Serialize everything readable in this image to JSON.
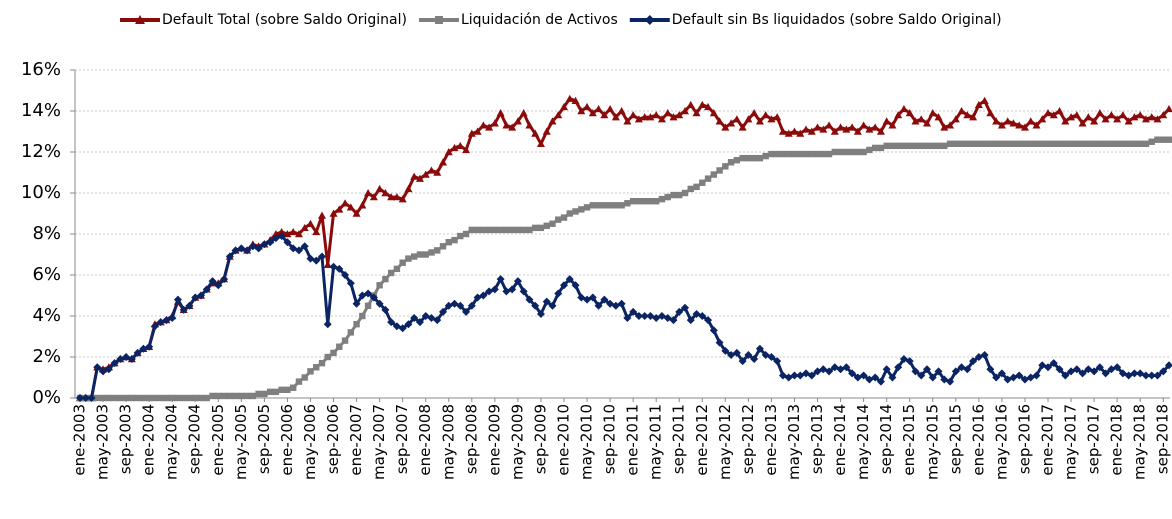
{
  "chart_data": {
    "type": "line",
    "categories": [
      "ene-2003",
      null,
      null,
      null,
      "may-2003",
      null,
      null,
      null,
      "sep-2003",
      null,
      null,
      null,
      "ene-2004",
      null,
      null,
      null,
      "may-2004",
      null,
      null,
      null,
      "sep-2004",
      null,
      null,
      null,
      "ene-2005",
      null,
      null,
      null,
      "may-2005",
      null,
      null,
      null,
      "sep-2005",
      null,
      null,
      null,
      "ene-2006",
      null,
      null,
      null,
      "may-2006",
      null,
      null,
      null,
      "sep-2006",
      null,
      null,
      null,
      "ene-2007",
      null,
      null,
      null,
      "may-2007",
      null,
      null,
      null,
      "sep-2007",
      null,
      null,
      null,
      "ene-2008",
      null,
      null,
      null,
      "may-2008",
      null,
      null,
      null,
      "sep-2008",
      null,
      null,
      null,
      "ene-2009",
      null,
      null,
      null,
      "may-2009",
      null,
      null,
      null,
      "sep-2009",
      null,
      null,
      null,
      "ene-2010",
      null,
      null,
      null,
      "may-2010",
      null,
      null,
      null,
      "sep-2010",
      null,
      null,
      null,
      "ene-2011",
      null,
      null,
      null,
      "may-2011",
      null,
      null,
      null,
      "sep-2011",
      null,
      null,
      null,
      "ene-2012",
      null,
      null,
      null,
      "may-2012",
      null,
      null,
      null,
      "sep-2012",
      null,
      null,
      null,
      "ene-2013",
      null,
      null,
      null,
      "may-2013",
      null,
      null,
      null,
      "sep-2013",
      null,
      null,
      null,
      "ene-2014",
      null,
      null,
      null,
      "may-2014",
      null,
      null,
      null,
      "sep-2014",
      null,
      null,
      null,
      "ene-2015",
      null,
      null,
      null,
      "may-2015",
      null,
      null,
      null,
      "sep-2015",
      null,
      null,
      null,
      "ene-2016",
      null,
      null,
      null,
      "may-2016",
      null,
      null,
      null,
      "sep-2016",
      null,
      null,
      null,
      "ene-2017",
      null,
      null,
      null,
      "may-2017",
      null,
      null,
      null,
      "sep-2017",
      null,
      null,
      null,
      "ene-2018",
      null,
      null,
      null,
      "may-2018",
      null,
      null,
      null,
      "sep-2018",
      null
    ],
    "series": [
      {
        "name": "Default Total (sobre Saldo Original)",
        "color": "#8b0a0a",
        "marker": "triangle",
        "values": [
          0,
          0,
          0,
          1.5,
          1.4,
          1.5,
          1.7,
          1.9,
          2.0,
          1.9,
          2.2,
          2.4,
          2.5,
          3.6,
          3.7,
          3.8,
          4.0,
          4.7,
          4.3,
          4.5,
          4.9,
          5.0,
          5.3,
          5.6,
          5.6,
          5.8,
          6.9,
          7.2,
          7.3,
          7.2,
          7.5,
          7.4,
          7.5,
          7.7,
          8.0,
          8.1,
          8.0,
          8.1,
          8.0,
          8.3,
          8.5,
          8.1,
          8.9,
          6.5,
          9.0,
          9.2,
          9.5,
          9.3,
          9.0,
          9.4,
          10.0,
          9.8,
          10.2,
          10.0,
          9.8,
          9.8,
          9.7,
          10.2,
          10.8,
          10.7,
          10.9,
          11.1,
          11.0,
          11.5,
          12.0,
          12.2,
          12.3,
          12.1,
          12.9,
          13.0,
          13.3,
          13.2,
          13.4,
          13.9,
          13.3,
          13.2,
          13.5,
          13.9,
          13.3,
          12.9,
          12.4,
          13.0,
          13.5,
          13.8,
          14.2,
          14.6,
          14.5,
          14.0,
          14.2,
          13.9,
          14.1,
          13.8,
          14.1,
          13.7,
          14.0,
          13.5,
          13.8,
          13.6,
          13.7,
          13.7,
          13.8,
          13.6,
          13.9,
          13.7,
          13.8,
          14.0,
          14.3,
          13.9,
          14.3,
          14.2,
          13.9,
          13.5,
          13.2,
          13.4,
          13.6,
          13.2,
          13.6,
          13.9,
          13.5,
          13.8,
          13.6,
          13.7,
          13.0,
          12.9,
          13.0,
          12.9,
          13.1,
          13.0,
          13.2,
          13.1,
          13.3,
          13.0,
          13.2,
          13.1,
          13.2,
          13.0,
          13.3,
          13.1,
          13.2,
          13.0,
          13.5,
          13.3,
          13.8,
          14.1,
          13.9,
          13.5,
          13.6,
          13.4,
          13.9,
          13.7,
          13.2,
          13.3,
          13.6,
          14.0,
          13.8,
          13.7,
          14.3,
          14.5,
          13.9,
          13.5,
          13.3,
          13.5,
          13.4,
          13.3,
          13.2,
          13.5,
          13.3,
          13.6,
          13.9,
          13.8,
          14.0,
          13.5,
          13.7,
          13.8,
          13.4,
          13.7,
          13.5,
          13.9,
          13.6,
          13.8,
          13.6,
          13.8,
          13.5,
          13.7,
          13.8,
          13.6,
          13.7,
          13.6,
          13.8,
          14.1
        ]
      },
      {
        "name": "Liquidación de Activos",
        "color": "#7f7f7f",
        "marker": "square",
        "values": [
          0,
          0,
          0,
          0,
          0,
          0,
          0,
          0,
          0,
          0,
          0,
          0,
          0,
          0,
          0,
          0,
          0,
          0,
          0,
          0,
          0,
          0,
          0,
          0.1,
          0.1,
          0.1,
          0.1,
          0.1,
          0.1,
          0.1,
          0.1,
          0.2,
          0.2,
          0.3,
          0.3,
          0.4,
          0.4,
          0.5,
          0.8,
          1.0,
          1.3,
          1.5,
          1.7,
          2.0,
          2.2,
          2.5,
          2.8,
          3.2,
          3.6,
          4.0,
          4.5,
          5.0,
          5.5,
          5.8,
          6.1,
          6.3,
          6.6,
          6.8,
          6.9,
          7.0,
          7.0,
          7.1,
          7.2,
          7.4,
          7.6,
          7.7,
          7.9,
          8.0,
          8.2,
          8.2,
          8.2,
          8.2,
          8.2,
          8.2,
          8.2,
          8.2,
          8.2,
          8.2,
          8.2,
          8.3,
          8.3,
          8.4,
          8.5,
          8.7,
          8.8,
          9.0,
          9.1,
          9.2,
          9.3,
          9.4,
          9.4,
          9.4,
          9.4,
          9.4,
          9.4,
          9.5,
          9.6,
          9.6,
          9.6,
          9.6,
          9.6,
          9.7,
          9.8,
          9.9,
          9.9,
          10.0,
          10.2,
          10.3,
          10.5,
          10.7,
          10.9,
          11.1,
          11.3,
          11.5,
          11.6,
          11.7,
          11.7,
          11.7,
          11.7,
          11.8,
          11.9,
          11.9,
          11.9,
          11.9,
          11.9,
          11.9,
          11.9,
          11.9,
          11.9,
          11.9,
          11.9,
          12.0,
          12.0,
          12.0,
          12.0,
          12.0,
          12.0,
          12.1,
          12.2,
          12.2,
          12.3,
          12.3,
          12.3,
          12.3,
          12.3,
          12.3,
          12.3,
          12.3,
          12.3,
          12.3,
          12.3,
          12.4,
          12.4,
          12.4,
          12.4,
          12.4,
          12.4,
          12.4,
          12.4,
          12.4,
          12.4,
          12.4,
          12.4,
          12.4,
          12.4,
          12.4,
          12.4,
          12.4,
          12.4,
          12.4,
          12.4,
          12.4,
          12.4,
          12.4,
          12.4,
          12.4,
          12.4,
          12.4,
          12.4,
          12.4,
          12.4,
          12.4,
          12.4,
          12.4,
          12.4,
          12.4,
          12.5,
          12.6,
          12.6,
          12.6
        ]
      },
      {
        "name": "Default sin Bs liquidados (sobre Saldo Original)",
        "color": "#0b2463",
        "marker": "diamond",
        "values": [
          0,
          0,
          0,
          1.5,
          1.3,
          1.4,
          1.7,
          1.9,
          2.0,
          1.9,
          2.2,
          2.4,
          2.5,
          3.5,
          3.7,
          3.8,
          3.9,
          4.8,
          4.3,
          4.5,
          4.9,
          5.0,
          5.3,
          5.7,
          5.5,
          5.8,
          6.9,
          7.2,
          7.3,
          7.2,
          7.4,
          7.3,
          7.5,
          7.6,
          7.8,
          7.9,
          7.6,
          7.3,
          7.2,
          7.4,
          6.8,
          6.7,
          6.9,
          3.6,
          6.4,
          6.3,
          6.0,
          5.6,
          4.6,
          5.0,
          5.1,
          4.9,
          4.6,
          4.3,
          3.7,
          3.5,
          3.4,
          3.6,
          3.9,
          3.7,
          4.0,
          3.9,
          3.8,
          4.2,
          4.5,
          4.6,
          4.5,
          4.2,
          4.5,
          4.9,
          5.0,
          5.2,
          5.3,
          5.8,
          5.2,
          5.3,
          5.7,
          5.2,
          4.8,
          4.5,
          4.1,
          4.7,
          4.5,
          5.1,
          5.5,
          5.8,
          5.5,
          4.9,
          4.8,
          4.9,
          4.5,
          4.8,
          4.6,
          4.5,
          4.6,
          3.9,
          4.2,
          4.0,
          4.0,
          4.0,
          3.9,
          4.0,
          3.9,
          3.8,
          4.2,
          4.4,
          3.8,
          4.1,
          4.0,
          3.8,
          3.3,
          2.7,
          2.3,
          2.1,
          2.2,
          1.8,
          2.1,
          1.9,
          2.4,
          2.1,
          2.0,
          1.8,
          1.1,
          1.0,
          1.1,
          1.1,
          1.2,
          1.1,
          1.3,
          1.4,
          1.3,
          1.5,
          1.4,
          1.5,
          1.2,
          1.0,
          1.1,
          0.9,
          1.0,
          0.8,
          1.4,
          1.0,
          1.5,
          1.9,
          1.8,
          1.3,
          1.1,
          1.4,
          1.0,
          1.3,
          0.9,
          0.8,
          1.3,
          1.5,
          1.4,
          1.8,
          2.0,
          2.1,
          1.4,
          1.0,
          1.2,
          0.9,
          1.0,
          1.1,
          0.9,
          1.0,
          1.1,
          1.6,
          1.5,
          1.7,
          1.4,
          1.1,
          1.3,
          1.4,
          1.2,
          1.4,
          1.3,
          1.5,
          1.2,
          1.4,
          1.5,
          1.2,
          1.1,
          1.2,
          1.2,
          1.1,
          1.1,
          1.1,
          1.3,
          1.6
        ]
      }
    ],
    "ylim": [
      0,
      16
    ],
    "yticks": [
      {
        "value": 0,
        "label": "0%"
      },
      {
        "value": 2,
        "label": "2%"
      },
      {
        "value": 4,
        "label": "4%"
      },
      {
        "value": 6,
        "label": "6%"
      },
      {
        "value": 8,
        "label": "8%"
      },
      {
        "value": 10,
        "label": "10%"
      },
      {
        "value": 12,
        "label": "12%"
      },
      {
        "value": 14,
        "label": "14%"
      },
      {
        "value": 16,
        "label": "16%"
      }
    ],
    "grid": true,
    "legend": "top"
  }
}
